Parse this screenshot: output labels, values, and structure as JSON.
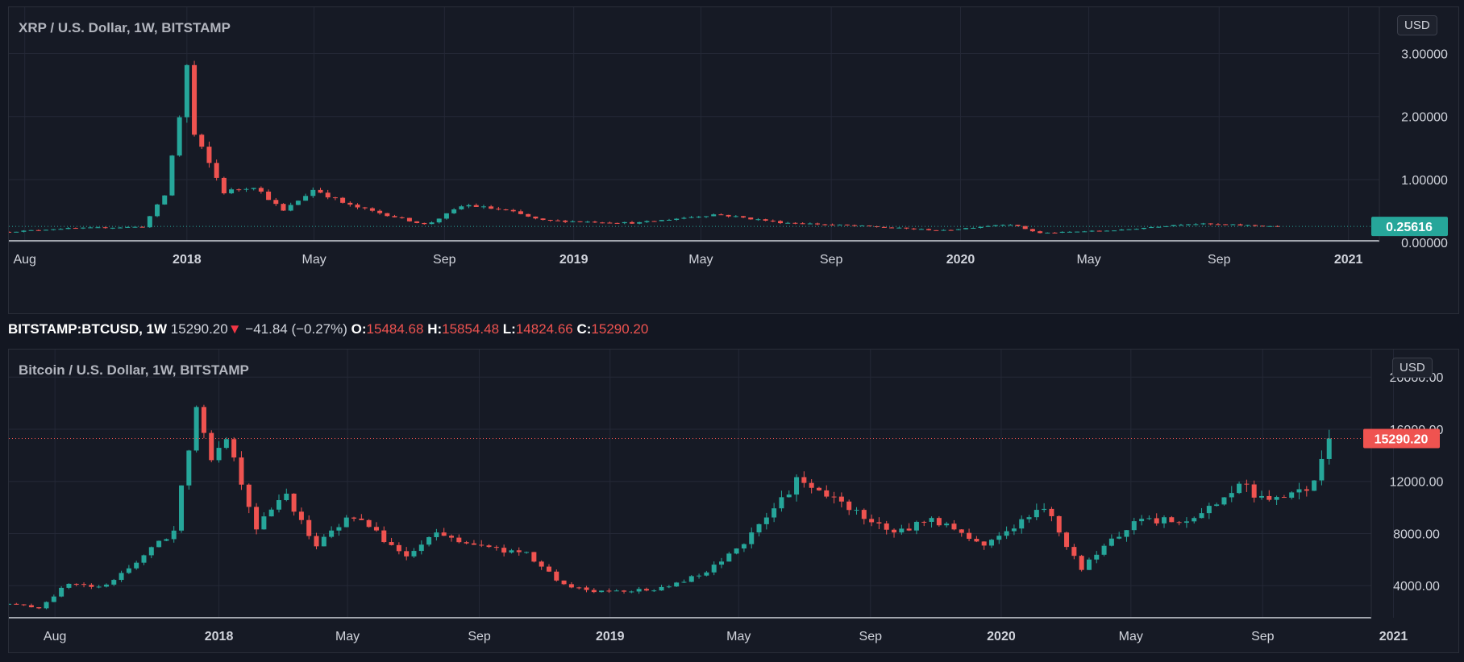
{
  "colors": {
    "background": "#131722",
    "panel": "#161a25",
    "grid": "#242836",
    "up": "#26a69a",
    "down": "#ef5350",
    "axis_text": "#d1d4dc"
  },
  "infobar": {
    "symbol": "BITSTAMP:BTCUSD, 1W",
    "price": "15290.20",
    "arrow": "▼",
    "change": "−41.84 (−0.27%)",
    "open_label": "O:",
    "open": "15484.68",
    "high_label": "H:",
    "high": "15854.48",
    "low_label": "L:",
    "low": "14824.66",
    "close_label": "C:",
    "close": "15290.20"
  },
  "charts": {
    "xrp": {
      "title": "XRP / U.S. Dollar, 1W, BITSTAMP",
      "currency": "USD",
      "last_price": "0.25616",
      "last_price_color": "#26a69a"
    },
    "btc": {
      "title": "Bitcoin / U.S. Dollar, 1W, BITSTAMP",
      "currency": "USD",
      "last_price": "15290.20",
      "last_price_color": "#ef5350"
    }
  },
  "chart_data": [
    {
      "type": "candlestick",
      "title": "XRP / U.S. Dollar, 1W, BITSTAMP",
      "interval": "1W",
      "ylim": [
        -0.1,
        3.3
      ],
      "y_ticks": [
        "3.00000",
        "2.00000",
        "1.00000",
        "0.00000"
      ],
      "y_tick_values": [
        3,
        2,
        1,
        0
      ],
      "x_ticks": [
        {
          "label": "Aug",
          "date": "2017-08-01",
          "bold": false
        },
        {
          "label": "2018",
          "date": "2018-01-01",
          "bold": true
        },
        {
          "label": "May",
          "date": "2018-05-01",
          "bold": false
        },
        {
          "label": "Sep",
          "date": "2018-09-01",
          "bold": false
        },
        {
          "label": "2019",
          "date": "2019-01-01",
          "bold": true
        },
        {
          "label": "May",
          "date": "2019-05-01",
          "bold": false
        },
        {
          "label": "Sep",
          "date": "2019-09-01",
          "bold": false
        },
        {
          "label": "2020",
          "date": "2020-01-01",
          "bold": true
        },
        {
          "label": "May",
          "date": "2020-05-01",
          "bold": false
        },
        {
          "label": "Sep",
          "date": "2020-09-01",
          "bold": false
        },
        {
          "label": "2021",
          "date": "2021-01-01",
          "bold": true
        }
      ],
      "x_start": "2017-07-17",
      "x_end": "2021-02-22",
      "last_price": 0.25616,
      "close_series": [
        {
          "date": "2017-07-17",
          "close": 0.17
        },
        {
          "date": "2017-09-01",
          "close": 0.22
        },
        {
          "date": "2017-11-20",
          "close": 0.25
        },
        {
          "date": "2017-12-11",
          "close": 0.75
        },
        {
          "date": "2017-12-25",
          "close": 2.0
        },
        {
          "date": "2018-01-01",
          "close": 2.8
        },
        {
          "date": "2018-01-08",
          "close": 1.7
        },
        {
          "date": "2018-02-05",
          "close": 0.8
        },
        {
          "date": "2018-03-05",
          "close": 0.9
        },
        {
          "date": "2018-04-02",
          "close": 0.5
        },
        {
          "date": "2018-05-01",
          "close": 0.85
        },
        {
          "date": "2018-06-01",
          "close": 0.6
        },
        {
          "date": "2018-08-15",
          "close": 0.28
        },
        {
          "date": "2018-09-20",
          "close": 0.6
        },
        {
          "date": "2018-11-01",
          "close": 0.5
        },
        {
          "date": "2018-12-01",
          "close": 0.35
        },
        {
          "date": "2019-03-01",
          "close": 0.31
        },
        {
          "date": "2019-05-15",
          "close": 0.45
        },
        {
          "date": "2019-07-15",
          "close": 0.32
        },
        {
          "date": "2019-10-01",
          "close": 0.26
        },
        {
          "date": "2019-12-15",
          "close": 0.19
        },
        {
          "date": "2020-02-15",
          "close": 0.3
        },
        {
          "date": "2020-03-15",
          "close": 0.15
        },
        {
          "date": "2020-06-01",
          "close": 0.2
        },
        {
          "date": "2020-08-01",
          "close": 0.3
        },
        {
          "date": "2020-11-01",
          "close": 0.25616
        }
      ]
    },
    {
      "type": "candlestick",
      "title": "Bitcoin / U.S. Dollar, 1W, BITSTAMP",
      "interval": "1W",
      "ylim": [
        0,
        21000
      ],
      "y_ticks": [
        "20000.00",
        "16000.00",
        "12000.00",
        "8000.00",
        "4000.00"
      ],
      "y_tick_values": [
        20000,
        16000,
        12000,
        8000,
        4000
      ],
      "x_ticks": [
        {
          "label": "Aug",
          "date": "2017-08-01",
          "bold": false
        },
        {
          "label": "2018",
          "date": "2018-01-01",
          "bold": true
        },
        {
          "label": "May",
          "date": "2018-05-01",
          "bold": false
        },
        {
          "label": "Sep",
          "date": "2018-09-01",
          "bold": false
        },
        {
          "label": "2019",
          "date": "2019-01-01",
          "bold": true
        },
        {
          "label": "May",
          "date": "2019-05-01",
          "bold": false
        },
        {
          "label": "Sep",
          "date": "2019-09-01",
          "bold": false
        },
        {
          "label": "2020",
          "date": "2020-01-01",
          "bold": true
        },
        {
          "label": "May",
          "date": "2020-05-01",
          "bold": false
        },
        {
          "label": "Sep",
          "date": "2020-09-01",
          "bold": false
        },
        {
          "label": "2021",
          "date": "2021-01-01",
          "bold": true
        }
      ],
      "x_start": "2017-06-19",
      "x_end": "2021-02-08",
      "last_price": 15290.2,
      "close_series": [
        {
          "date": "2017-06-19",
          "close": 2600
        },
        {
          "date": "2017-07-17",
          "close": 2300
        },
        {
          "date": "2017-08-14",
          "close": 4200
        },
        {
          "date": "2017-09-15",
          "close": 3800
        },
        {
          "date": "2017-10-15",
          "close": 5800
        },
        {
          "date": "2017-11-20",
          "close": 8200
        },
        {
          "date": "2017-12-11",
          "close": 18000
        },
        {
          "date": "2017-12-25",
          "close": 14000
        },
        {
          "date": "2018-01-08",
          "close": 15500
        },
        {
          "date": "2018-02-05",
          "close": 8500
        },
        {
          "date": "2018-03-05",
          "close": 11000
        },
        {
          "date": "2018-04-01",
          "close": 7000
        },
        {
          "date": "2018-05-05",
          "close": 9500
        },
        {
          "date": "2018-06-25",
          "close": 6200
        },
        {
          "date": "2018-07-23",
          "close": 8000
        },
        {
          "date": "2018-09-01",
          "close": 7000
        },
        {
          "date": "2018-10-15",
          "close": 6400
        },
        {
          "date": "2018-11-19",
          "close": 4000
        },
        {
          "date": "2018-12-17",
          "close": 3600
        },
        {
          "date": "2019-02-15",
          "close": 3700
        },
        {
          "date": "2019-04-01",
          "close": 5000
        },
        {
          "date": "2019-05-15",
          "close": 8000
        },
        {
          "date": "2019-06-24",
          "close": 12000
        },
        {
          "date": "2019-08-01",
          "close": 10500
        },
        {
          "date": "2019-09-23",
          "close": 8000
        },
        {
          "date": "2019-10-28",
          "close": 9200
        },
        {
          "date": "2019-12-15",
          "close": 7100
        },
        {
          "date": "2020-02-10",
          "close": 10000
        },
        {
          "date": "2020-03-16",
          "close": 5300
        },
        {
          "date": "2020-05-01",
          "close": 8800
        },
        {
          "date": "2020-07-01",
          "close": 9200
        },
        {
          "date": "2020-08-10",
          "close": 11800
        },
        {
          "date": "2020-09-07",
          "close": 10300
        },
        {
          "date": "2020-10-15",
          "close": 11500
        },
        {
          "date": "2020-10-26",
          "close": 13500
        },
        {
          "date": "2020-11-02",
          "close": 15290.2
        }
      ]
    }
  ]
}
